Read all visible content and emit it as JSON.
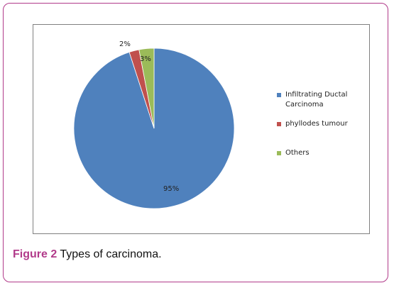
{
  "chart_data": {
    "type": "pie",
    "title": "",
    "slices": [
      {
        "label": "Infiltrating Ductal Carcinoma",
        "value": 95,
        "value_label": "95%",
        "color": "#4f81bd"
      },
      {
        "label": "phyllodes tumour",
        "value": 2,
        "value_label": "2%",
        "color": "#c0504d"
      },
      {
        "label": "Others",
        "value": 3,
        "value_label": "3%",
        "color": "#9bbb59"
      }
    ],
    "legend_position": "right"
  },
  "legend": {
    "item0_line1": "Infiltrating Ductal",
    "item0_line2": "Carcinoma",
    "item1": "phyllodes tumour",
    "item2": "Others"
  },
  "caption": {
    "figure_label": "Figure 2",
    "text": "Types of carcinoma."
  }
}
